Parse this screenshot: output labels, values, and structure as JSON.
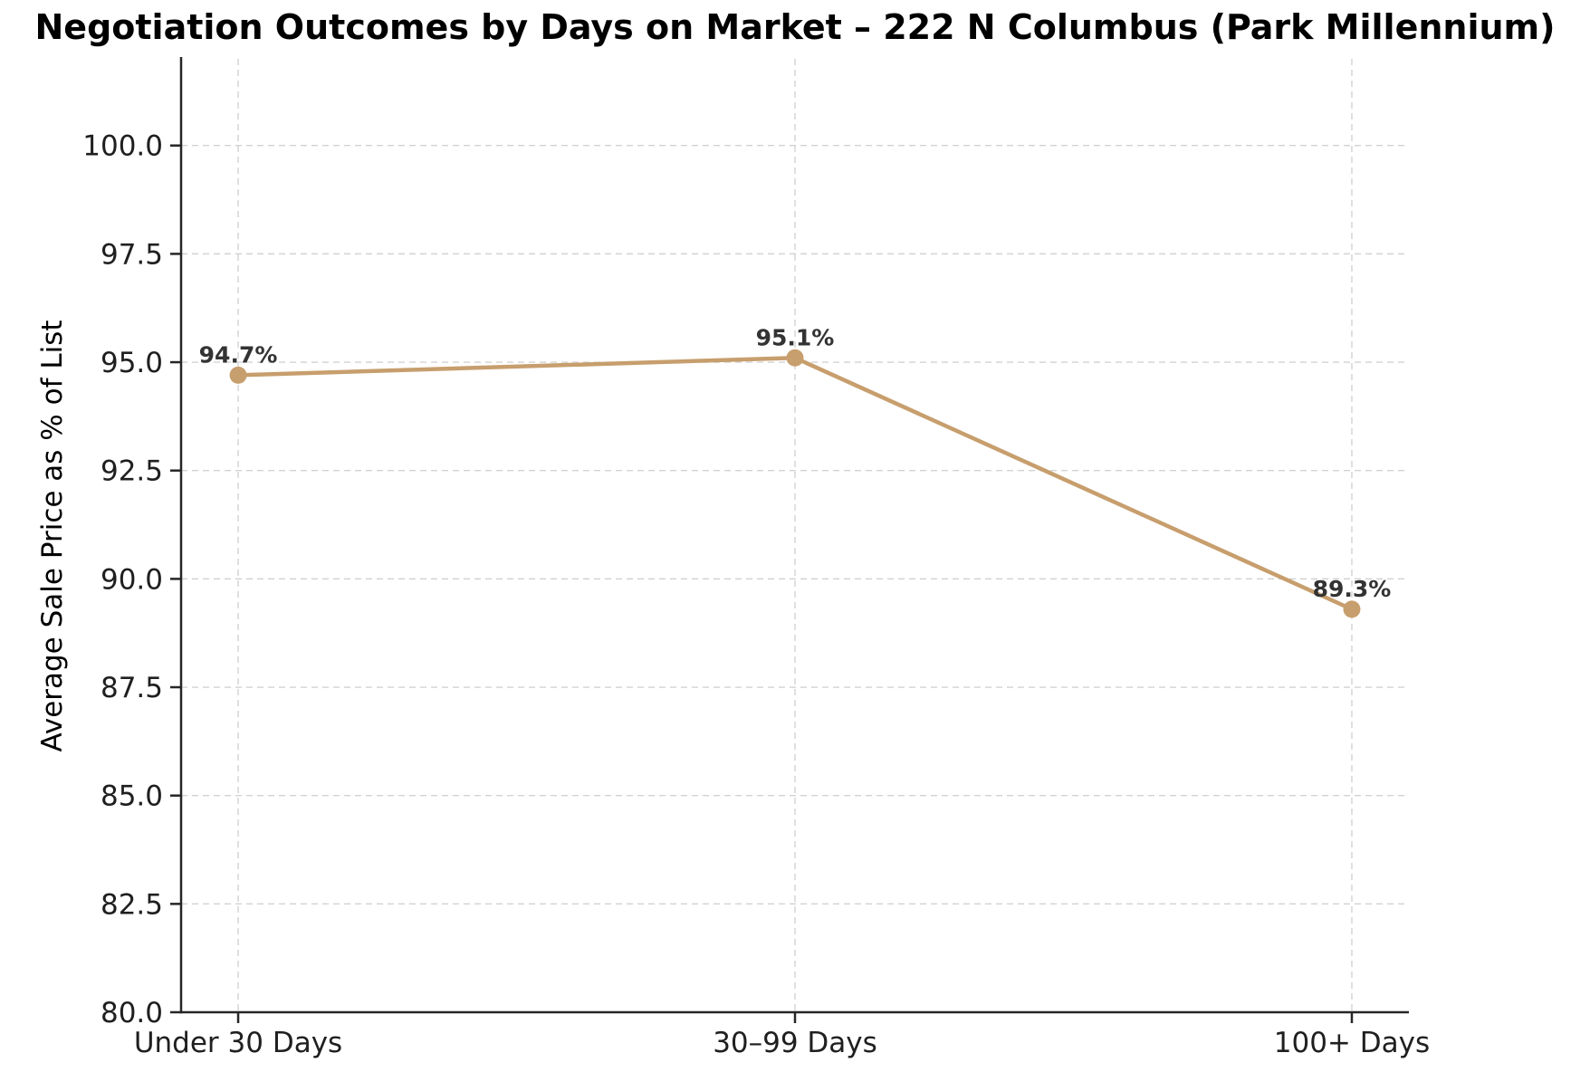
{
  "chart_data": {
    "type": "line",
    "title": "Negotiation Outcomes by Days on Market – 222 N Columbus (Park Millennium)",
    "xlabel": "",
    "ylabel": "Average Sale Price as % of List",
    "categories": [
      "Under 30 Days",
      "30–99 Days",
      "100+ Days"
    ],
    "values": [
      94.7,
      95.1,
      89.3
    ],
    "point_labels": [
      "94.7%",
      "95.1%",
      "89.3%"
    ],
    "ylim": [
      80,
      102
    ],
    "yticks": [
      80.0,
      82.5,
      85.0,
      87.5,
      90.0,
      92.5,
      95.0,
      97.5,
      100.0
    ],
    "ytick_labels": [
      "80.0",
      "82.5",
      "85.0",
      "87.5",
      "90.0",
      "92.5",
      "95.0",
      "97.5",
      "100.0"
    ],
    "grid": true,
    "grid_style": "dashed",
    "legend_position": "none",
    "colors": {
      "line": "#C79E6D",
      "marker": "#C79E6D",
      "title": "#333333",
      "tick_label": "#1f1f1f",
      "data_label": "#333333",
      "grid": "#d2d2d2",
      "spine": "#262626",
      "background": "#ffffff"
    }
  }
}
